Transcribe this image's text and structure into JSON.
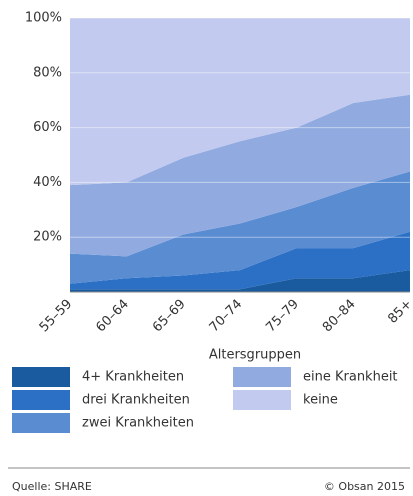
{
  "chart_data": {
    "type": "stacked_area",
    "xlabel": "Altersgruppen",
    "categories": [
      "55–59",
      "60–64",
      "65–69",
      "70–74",
      "75–79",
      "80–84",
      "85+"
    ],
    "series": [
      {
        "name": "4+ Krankheiten",
        "color": "#1a5a9e",
        "values": [
          1,
          1,
          1,
          1,
          5,
          5,
          8
        ]
      },
      {
        "name": "drei Krankheiten",
        "color": "#2b70c4",
        "values": [
          2,
          4,
          5,
          7,
          11,
          11,
          14
        ]
      },
      {
        "name": "zwei Krankheiten",
        "color": "#5a8cd2",
        "values": [
          11,
          8,
          15,
          17,
          15,
          22,
          22
        ]
      },
      {
        "name": "eine Krankheit",
        "color": "#91abe0",
        "values": [
          25,
          27,
          28,
          30,
          29,
          31,
          28
        ]
      },
      {
        "name": "keine",
        "color": "#c2cbef",
        "values": [
          61,
          60,
          51,
          45,
          40,
          31,
          28
        ]
      }
    ],
    "ylim": [
      0,
      100
    ],
    "yticks": [
      {
        "value": 20,
        "label": "20%"
      },
      {
        "value": 40,
        "label": "40%"
      },
      {
        "value": 60,
        "label": "60%"
      },
      {
        "value": 80,
        "label": "80%"
      },
      {
        "value": 100,
        "label": "100%"
      }
    ],
    "grid": true,
    "source": "Quelle: SHARE",
    "credit": "© Obsan 2015"
  }
}
